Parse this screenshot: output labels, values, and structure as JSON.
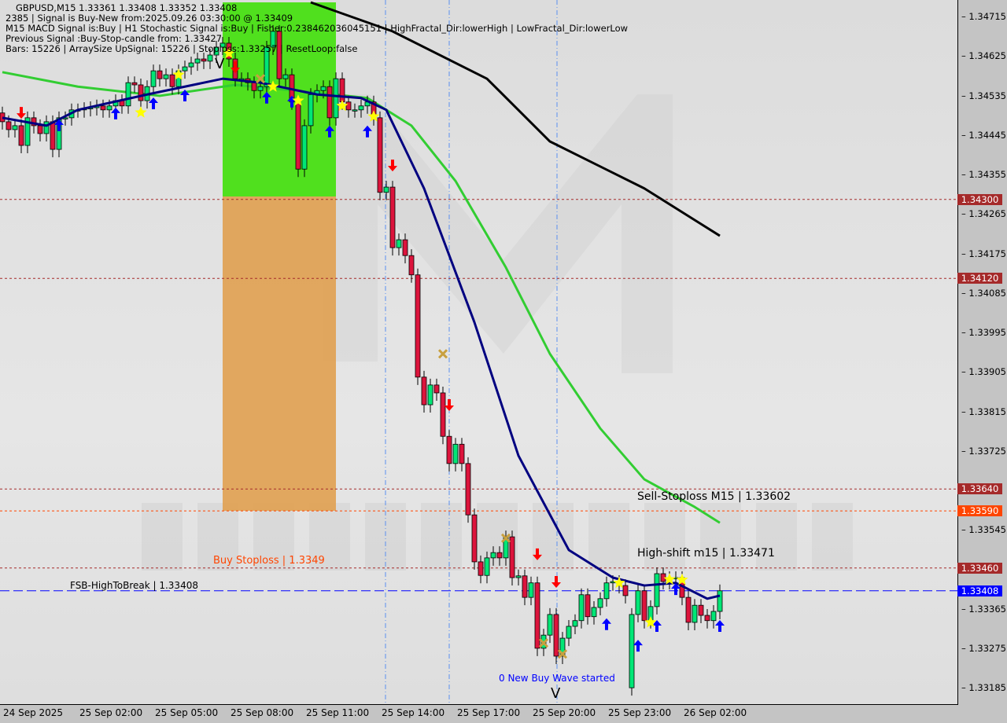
{
  "header": {
    "line1": "GBPUSD,M15  1.33361 1.33408 1.33352 1.33408",
    "line2": "2385 | Signal is Buy-New from:2025.09.26 03:30:00 @ 1.33409",
    "line3": "M15 MACD Signal is:Buy | H1 Stochastic Signal is:Buy | Fisher:0.238462036045151 | HighFractal_Dir:lowerHigh | LowFractal_Dir:lowerLow",
    "line4": "Previous Signal :Buy-Stop-candle from: 1.33427",
    "line5": "Bars: 15226 | ArraySize UpSignal: 15226 | Stoploss:1.33257 | ResetLoop:false"
  },
  "watermark": "MARKETZITRADE",
  "annotations": {
    "sell_stoploss": "Sell-Stoploss M15 | 1.33602",
    "high_shift": "High-shift m15 | 1.33471",
    "buy_stoploss": "Buy Stoploss | 1.3349",
    "fsb": "FSB-HighToBreak | 1.33408",
    "wave": "0 New Buy Wave started",
    "v_mark": "V"
  },
  "colors": {
    "bull": "#00e676",
    "bear": "#dc143c",
    "navy_ma": "#000080",
    "green_ma": "#32cd32",
    "black_ma": "#000000",
    "green_zone": "#50e01e",
    "orange_zone": "#e0a050",
    "current": "#0000ff"
  },
  "chart_data": {
    "type": "candlestick",
    "symbol": "GBPUSD",
    "timeframe": "M15",
    "ylim": [
      1.3314,
      1.3476
    ],
    "y_ticks": [
      "1.34715",
      "1.34625",
      "1.34535",
      "1.34445",
      "1.34355",
      "1.34265",
      "1.34175",
      "1.34085",
      "1.33995",
      "1.33905",
      "1.33815",
      "1.33725",
      "1.33545",
      "1.33365",
      "1.33275",
      "1.33185"
    ],
    "x_ticks": [
      {
        "bar": 4,
        "label": "24 Sep 2025"
      },
      {
        "bar": 12,
        "label": "25 Sep 02:00"
      },
      {
        "bar": 24,
        "label": "25 Sep 05:00"
      },
      {
        "bar": 36,
        "label": "25 Sep 08:00"
      },
      {
        "bar": 48,
        "label": "25 Sep 11:00"
      },
      {
        "bar": 60,
        "label": "25 Sep 14:00"
      },
      {
        "bar": 72,
        "label": "25 Sep 17:00"
      },
      {
        "bar": 84,
        "label": "25 Sep 20:00"
      },
      {
        "bar": 96,
        "label": "25 Sep 23:00"
      },
      {
        "bar": 108,
        "label": "26 Sep 02:00"
      }
    ],
    "close": [
      1.34477,
      1.34459,
      1.34468,
      1.34423,
      1.34486,
      1.34468,
      1.3445,
      1.34477,
      1.34414,
      1.34486,
      1.34486,
      1.34504,
      1.34504,
      1.34507,
      1.34509,
      1.34513,
      1.34504,
      1.34513,
      1.34525,
      1.34513,
      1.34566,
      1.34561,
      1.34525,
      1.34557,
      1.34593,
      1.34575,
      1.34584,
      1.34557,
      1.34593,
      1.34602,
      1.34611,
      1.3462,
      1.34615,
      1.34629,
      1.34647,
      1.34656,
      1.3462,
      1.34575,
      1.34575,
      1.34566,
      1.34548,
      1.34557,
      1.34647,
      1.34683,
      1.34575,
      1.34584,
      1.34522,
      1.34369,
      1.34468,
      1.34539,
      1.34548,
      1.34557,
      1.34486,
      1.34575,
      1.34522,
      1.34504,
      1.34504,
      1.34513,
      1.34522,
      1.34486,
      1.34316,
      1.34328,
      1.3419,
      1.34208,
      1.34172,
      1.34128,
      1.33895,
      1.33832,
      1.33877,
      1.33859,
      1.3376,
      1.33698,
      1.33742,
      1.33698,
      1.33581,
      1.33474,
      1.33443,
      1.33483,
      1.33495,
      1.33483,
      1.33531,
      1.33438,
      1.33442,
      1.33393,
      1.33426,
      1.33277,
      1.33307,
      1.33354,
      1.33259,
      1.333,
      1.33327,
      1.3334,
      1.33399,
      1.33349,
      1.3337,
      1.3339,
      1.33426,
      1.33429,
      1.3342,
      1.33397,
      1.33354,
      1.33408,
      1.3334,
      1.33372,
      1.33447,
      1.33429,
      1.33438,
      1.33438,
      1.33393,
      1.33336,
      1.33375,
      1.33352,
      1.3334,
      1.33361,
      1.33408
    ],
    "open_overrides": {
      "100": 1.33187
    },
    "horizontal_levels": [
      {
        "price": 1.343,
        "label": "1.34300",
        "color": "#a52a2a"
      },
      {
        "price": 1.3412,
        "label": "1.34120",
        "color": "#a52a2a"
      },
      {
        "price": 1.3364,
        "label": "1.33640",
        "color": "#a52a2a"
      },
      {
        "price": 1.3359,
        "label": "1.33590",
        "color": "#ff4500"
      },
      {
        "price": 1.3346,
        "label": "1.33460",
        "color": "#a52a2a"
      },
      {
        "price": 1.33408,
        "label": "1.33408",
        "color": "#0000ff"
      }
    ],
    "lines": {
      "black_ma": [
        [
          49,
          1.34749
        ],
        [
          62,
          1.34683
        ],
        [
          77,
          1.34575
        ],
        [
          87,
          1.34432
        ],
        [
          102,
          1.34325
        ],
        [
          114,
          1.34217
        ]
      ],
      "green_ma": [
        [
          0,
          1.3459
        ],
        [
          12,
          1.34557
        ],
        [
          25,
          1.34536
        ],
        [
          37,
          1.34561
        ],
        [
          50,
          1.34543
        ],
        [
          58,
          1.34531
        ],
        [
          65,
          1.34468
        ],
        [
          72,
          1.34342
        ],
        [
          80,
          1.34145
        ],
        [
          87,
          1.33948
        ],
        [
          95,
          1.33778
        ],
        [
          102,
          1.33662
        ],
        [
          110,
          1.33599
        ],
        [
          114,
          1.33563
        ]
      ],
      "navy_ma": [
        [
          0,
          1.34486
        ],
        [
          7,
          1.34468
        ],
        [
          12,
          1.34504
        ],
        [
          23,
          1.34539
        ],
        [
          35,
          1.34575
        ],
        [
          41,
          1.34566
        ],
        [
          50,
          1.34539
        ],
        [
          57,
          1.34531
        ],
        [
          61,
          1.34504
        ],
        [
          67,
          1.34325
        ],
        [
          75,
          1.3402
        ],
        [
          82,
          1.33716
        ],
        [
          90,
          1.33501
        ],
        [
          97,
          1.33438
        ],
        [
          102,
          1.3342
        ],
        [
          107,
          1.33426
        ],
        [
          112,
          1.3339
        ],
        [
          114,
          1.33397
        ]
      ]
    },
    "markers": {
      "up_arrow": [
        [
          9,
          1.34468
        ],
        [
          18,
          1.34495
        ],
        [
          24,
          1.34518
        ],
        [
          29,
          1.34536
        ],
        [
          42,
          1.34531
        ],
        [
          46,
          1.34522
        ],
        [
          52,
          1.34454
        ],
        [
          58,
          1.34454
        ],
        [
          96,
          1.33331
        ],
        [
          101,
          1.33282
        ],
        [
          104,
          1.33327
        ],
        [
          107,
          1.33411
        ],
        [
          114,
          1.33327
        ]
      ],
      "down_arrow": [
        [
          3,
          1.34498
        ],
        [
          37,
          1.34602
        ],
        [
          62,
          1.34378
        ],
        [
          71,
          1.33832
        ],
        [
          85,
          1.33492
        ],
        [
          88,
          1.33429
        ]
      ],
      "star": [
        [
          22,
          1.34498
        ],
        [
          28,
          1.34584
        ],
        [
          36,
          1.34633
        ],
        [
          43,
          1.34557
        ],
        [
          47,
          1.34525
        ],
        [
          54,
          1.34513
        ],
        [
          59,
          1.34489
        ],
        [
          98,
          1.33426
        ],
        [
          103,
          1.33336
        ],
        [
          106,
          1.33434
        ],
        [
          108,
          1.33433
        ]
      ],
      "cross": [
        [
          41,
          1.34575
        ],
        [
          70,
          1.33948
        ],
        [
          80,
          1.33528
        ],
        [
          86,
          1.33289
        ],
        [
          89,
          1.33264
        ]
      ]
    }
  }
}
